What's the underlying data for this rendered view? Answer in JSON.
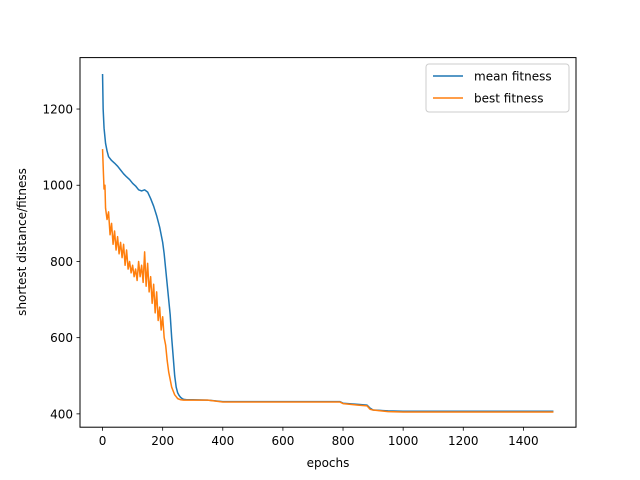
{
  "chart_data": {
    "type": "line",
    "title": "",
    "xlabel": "epochs",
    "ylabel": "shortest distance/fitness",
    "xlim": [
      -75,
      1575
    ],
    "ylim": [
      365,
      1335
    ],
    "xticks": [
      0,
      200,
      400,
      600,
      800,
      1000,
      1200,
      1400
    ],
    "yticks": [
      400,
      600,
      800,
      1000,
      1200
    ],
    "xtick_labels": [
      "0",
      "200",
      "400",
      "600",
      "800",
      "1000",
      "1200",
      "1400"
    ],
    "ytick_labels": [
      "400",
      "600",
      "800",
      "1000",
      "1200"
    ],
    "grid": false,
    "legend_position": "top-right",
    "series": [
      {
        "name": "mean fitness",
        "color": "#1f77b4",
        "x": [
          0,
          2,
          5,
          10,
          15,
          20,
          30,
          40,
          50,
          60,
          70,
          80,
          90,
          100,
          110,
          120,
          130,
          140,
          150,
          160,
          170,
          180,
          190,
          200,
          205,
          210,
          215,
          220,
          225,
          230,
          235,
          240,
          245,
          250,
          255,
          260,
          265,
          270,
          280,
          300,
          350,
          400,
          500,
          600,
          700,
          790,
          800,
          850,
          880,
          890,
          900,
          950,
          1000,
          1100,
          1200,
          1300,
          1400,
          1500
        ],
        "y": [
          1292,
          1200,
          1150,
          1110,
          1090,
          1075,
          1065,
          1058,
          1050,
          1040,
          1030,
          1022,
          1015,
          1005,
          998,
          988,
          985,
          988,
          982,
          965,
          945,
          920,
          890,
          850,
          820,
          780,
          740,
          700,
          660,
          600,
          550,
          500,
          470,
          455,
          448,
          443,
          440,
          438,
          437,
          437,
          436,
          432,
          432,
          432,
          432,
          432,
          428,
          425,
          423,
          415,
          410,
          408,
          407,
          407,
          407,
          407,
          407,
          407
        ]
      },
      {
        "name": "best fitness",
        "color": "#ff7f0e",
        "x": [
          0,
          3,
          5,
          8,
          10,
          15,
          20,
          25,
          30,
          35,
          40,
          45,
          50,
          55,
          60,
          65,
          70,
          75,
          80,
          85,
          90,
          95,
          100,
          105,
          110,
          115,
          120,
          125,
          130,
          135,
          140,
          145,
          150,
          155,
          160,
          165,
          170,
          175,
          180,
          185,
          190,
          195,
          200,
          205,
          210,
          215,
          220,
          225,
          230,
          235,
          240,
          245,
          250,
          260,
          270,
          280,
          300,
          350,
          400,
          500,
          600,
          700,
          790,
          800,
          850,
          880,
          890,
          900,
          950,
          1000,
          1100,
          1200,
          1300,
          1400,
          1500
        ],
        "y": [
          1095,
          1030,
          990,
          1000,
          940,
          910,
          930,
          870,
          900,
          845,
          880,
          830,
          865,
          820,
          850,
          810,
          845,
          790,
          830,
          780,
          800,
          770,
          790,
          760,
          780,
          750,
          800,
          760,
          790,
          745,
          825,
          735,
          795,
          720,
          760,
          690,
          740,
          665,
          720,
          645,
          680,
          620,
          655,
          600,
          580,
          540,
          510,
          490,
          470,
          460,
          450,
          445,
          440,
          437,
          436,
          436,
          436,
          436,
          431,
          431,
          431,
          431,
          431,
          427,
          423,
          421,
          412,
          410,
          406,
          405,
          405,
          405,
          405,
          405,
          405
        ]
      }
    ]
  }
}
